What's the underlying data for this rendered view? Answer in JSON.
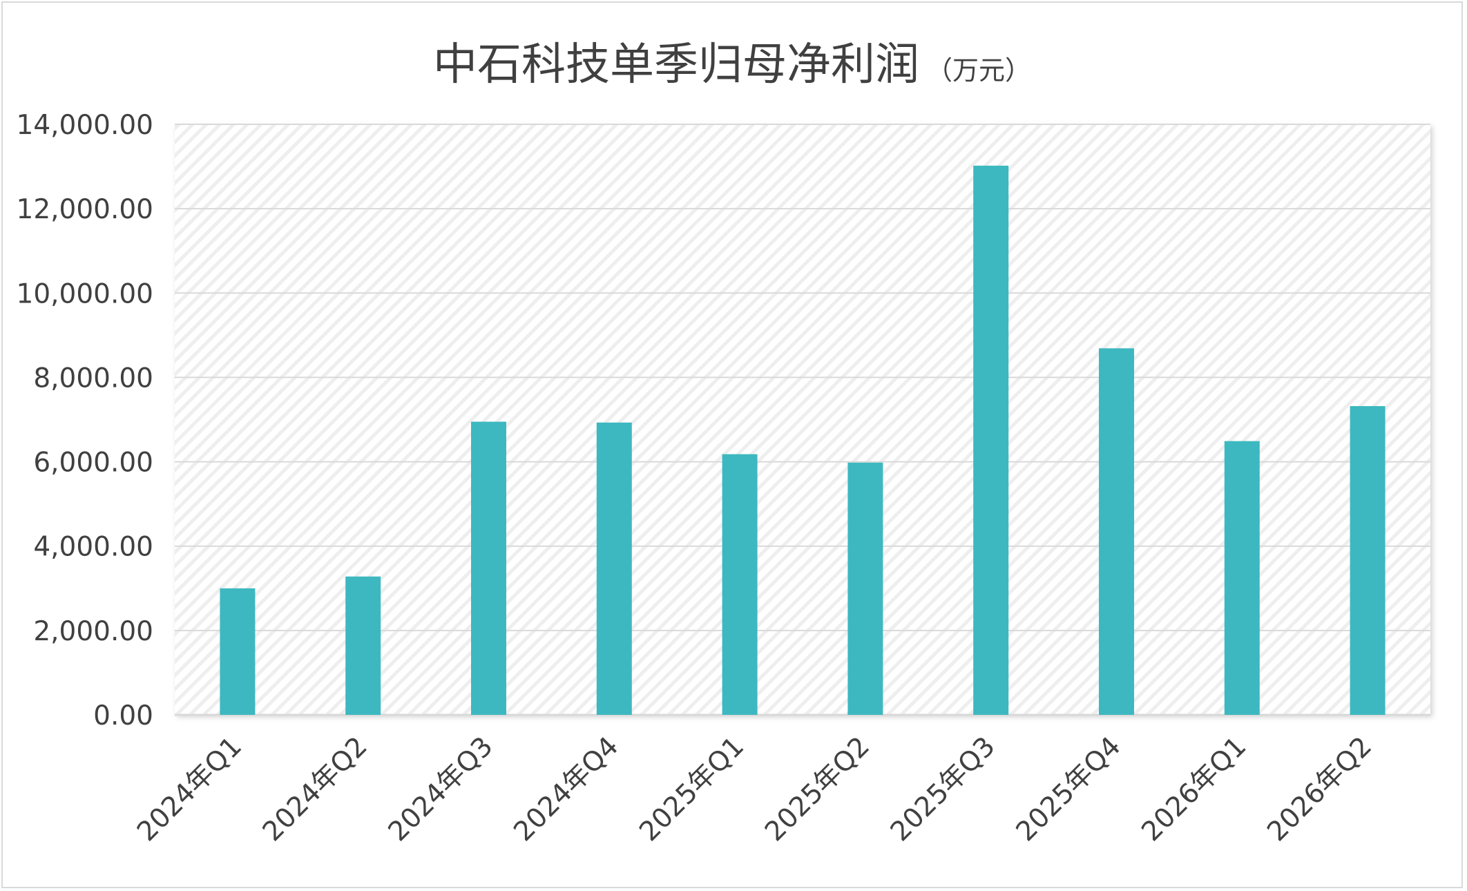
{
  "title": "中石科技单季归母净利润",
  "unit": "（万元）",
  "chart_data": {
    "type": "bar",
    "title": "中石科技单季归母净利润",
    "unit": "（万元）",
    "categories": [
      "2024年Q1",
      "2024年Q2",
      "2024年Q3",
      "2024年Q4",
      "2025年Q1",
      "2025年Q2",
      "2025年Q3",
      "2025年Q4",
      "2026年Q1",
      "2026年Q2"
    ],
    "values": [
      3000,
      3280,
      6950,
      6930,
      6180,
      5980,
      13020,
      8690,
      6490,
      7320
    ],
    "ylim": [
      0,
      14000
    ],
    "yticks": [
      0,
      2000,
      4000,
      6000,
      8000,
      10000,
      12000,
      14000
    ],
    "ytick_labels": [
      "0.00",
      "2,000.00",
      "4,000.00",
      "6,000.00",
      "8,000.00",
      "10,000.00",
      "12,000.00",
      "14,000.00"
    ],
    "grid": true,
    "legend": "none",
    "bar_color": "#3db8c0",
    "grid_color": "#d9d9d9",
    "plot_background": "hatched light gray"
  }
}
